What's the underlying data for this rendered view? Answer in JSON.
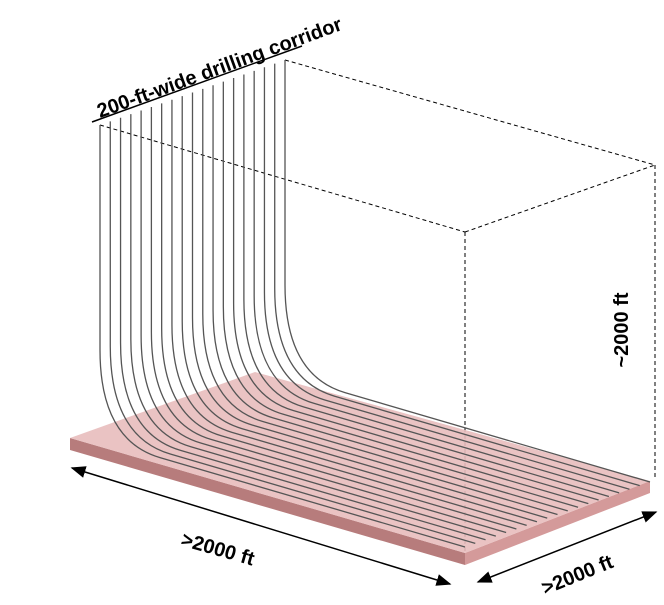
{
  "labels": {
    "corridor": "200-ft-wide drilling corridor",
    "height": "~2000 ft",
    "length": ">2000 ft",
    "width": ">2000 ft"
  }
}
